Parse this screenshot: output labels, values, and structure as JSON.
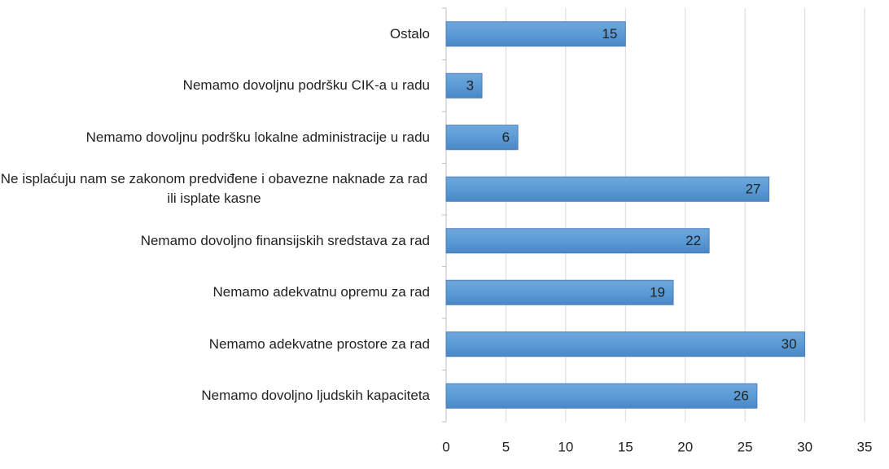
{
  "chart_data": {
    "type": "bar",
    "orientation": "horizontal",
    "categories": [
      "Ostalo",
      "Nemamo dovoljnu podršku CIK-a u radu",
      "Nemamo dovoljnu podršku lokalne administracije u radu",
      "Ne isplaćuju nam se zakonom predviđene i obavezne naknade za rad ili isplate kasne",
      "Nemamo dovoljno finansijskih  sredstava za rad",
      "Nemamo adekvatnu opremu za rad",
      "Nemamo adekvatne prostore za rad",
      "Nemamo dovoljno ljudskih kapaciteta"
    ],
    "values": [
      15,
      3,
      6,
      27,
      22,
      19,
      30,
      26
    ],
    "color": "#5b9bd5",
    "xlim": [
      0,
      35
    ],
    "xticks": [
      0,
      5,
      10,
      15,
      20,
      25,
      30,
      35
    ],
    "grid": true
  }
}
